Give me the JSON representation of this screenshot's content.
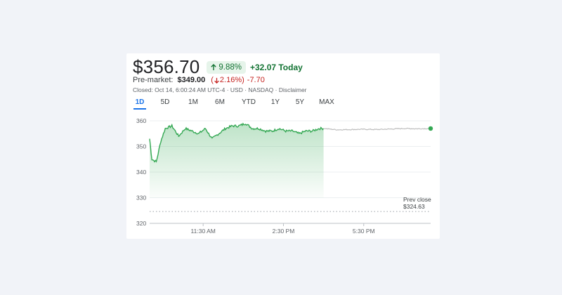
{
  "quote": {
    "price": "$356.70",
    "change_pct": "9.88%",
    "change_abs": "+32.07 Today",
    "premarket_label": "Pre-market:",
    "premarket_price": "$349.00",
    "premarket_pct": "2.16%",
    "premarket_change": "-7.70",
    "closed_info": "Closed: Oct 14, 6:00:24 AM UTC-4 · USD · NASDAQ · Disclaimer"
  },
  "colors": {
    "up": "#34a853",
    "up_text": "#137333",
    "down": "#c5221f",
    "future_line": "#bdbdbd",
    "active_tab": "#1a73e8"
  },
  "icons": {
    "up_arrow": "arrow-up-icon",
    "down_arrow": "arrow-down-icon"
  },
  "range_tabs": [
    {
      "label": "1D",
      "active": true
    },
    {
      "label": "5D",
      "active": false
    },
    {
      "label": "1M",
      "active": false
    },
    {
      "label": "6M",
      "active": false
    },
    {
      "label": "YTD",
      "active": false
    },
    {
      "label": "1Y",
      "active": false
    },
    {
      "label": "5Y",
      "active": false
    },
    {
      "label": "MAX",
      "active": false
    }
  ],
  "chart_data": {
    "type": "area",
    "y_ticks": [
      "360",
      "350",
      "340",
      "330",
      "320"
    ],
    "x_ticks": [
      "11:30 AM",
      "2:30 PM",
      "5:30 PM"
    ],
    "ylim": [
      320,
      360
    ],
    "prev_close_label": "Prev close",
    "prev_close_value": "$324.63",
    "series": [
      {
        "x": [
          "9:30",
          "9:35",
          "9:45",
          "9:55",
          "10:05",
          "10:20",
          "10:35",
          "10:50",
          "11:05",
          "11:20",
          "11:35",
          "11:50",
          "12:05",
          "12:20",
          "12:35",
          "12:50",
          "13:05",
          "13:20",
          "13:35",
          "13:50",
          "14:05",
          "14:20",
          "14:35",
          "14:50",
          "15:05",
          "15:20",
          "15:35",
          "15:50",
          "16:00"
        ],
        "values": [
          353,
          345,
          344,
          352,
          357,
          358,
          354,
          357,
          356,
          355,
          357,
          353,
          355,
          357,
          358,
          358,
          359,
          357,
          357,
          356,
          356,
          357,
          356,
          356,
          355,
          356,
          356,
          357,
          357
        ]
      },
      {
        "x": [
          "16:00",
          "16:30",
          "17:00",
          "17:30",
          "18:00",
          "18:30",
          "19:00",
          "19:30",
          "20:00"
        ],
        "values": [
          357,
          356.5,
          356.6,
          356.7,
          356.6,
          356.8,
          357.0,
          356.9,
          357.0
        ]
      }
    ]
  }
}
